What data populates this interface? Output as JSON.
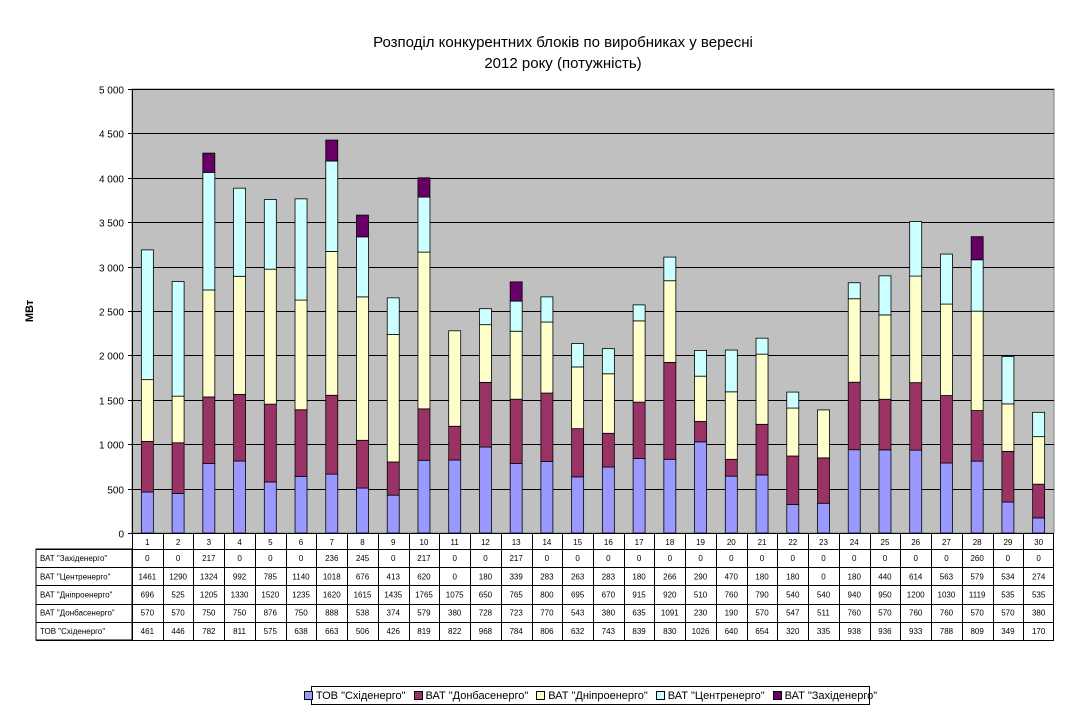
{
  "chart_data": {
    "type": "bar",
    "stacked": true,
    "title_lines": [
      "Розподіл конкурентних блоків по виробниках у вересні",
      "2012 року (потужність)"
    ],
    "ylabel": "МВт",
    "xlabel": "",
    "ylim": [
      0,
      5000
    ],
    "yticks": [
      0,
      500,
      1000,
      1500,
      2000,
      2500,
      3000,
      3500,
      4000,
      4500,
      5000
    ],
    "ytick_labels": [
      "0",
      "500",
      "1 000",
      "1 500",
      "2 000",
      "2 500",
      "3 000",
      "3 500",
      "4 000",
      "4 500",
      "5 000"
    ],
    "grid": true,
    "legend_position": "bottom",
    "categories": [
      "1",
      "2",
      "3",
      "4",
      "5",
      "6",
      "7",
      "8",
      "9",
      "10",
      "11",
      "12",
      "13",
      "14",
      "15",
      "16",
      "17",
      "18",
      "19",
      "20",
      "21",
      "22",
      "23",
      "24",
      "25",
      "26",
      "27",
      "28",
      "29",
      "30"
    ],
    "series": [
      {
        "name": "ТОВ \"Східенерго\"",
        "color": "#9999ff",
        "values": [
          461,
          446,
          782,
          811,
          575,
          638,
          663,
          506,
          426,
          819,
          822,
          968,
          784,
          806,
          632,
          743,
          839,
          830,
          1026,
          640,
          654,
          320,
          335,
          938,
          936,
          933,
          788,
          809,
          349,
          170
        ]
      },
      {
        "name": "ВАТ \"Донбасенерго\"",
        "color": "#993366",
        "values": [
          570,
          570,
          750,
          750,
          876,
          750,
          888,
          538,
          374,
          579,
          380,
          728,
          723,
          770,
          543,
          380,
          635,
          1091,
          230,
          190,
          570,
          547,
          511,
          760,
          570,
          760,
          760,
          570,
          570,
          380
        ]
      },
      {
        "name": "ВАТ \"Дніпроенерго\"",
        "color": "#ffffcc",
        "values": [
          696,
          525,
          1205,
          1330,
          1520,
          1235,
          1620,
          1615,
          1435,
          1765,
          1075,
          650,
          765,
          800,
          695,
          670,
          915,
          920,
          510,
          760,
          790,
          540,
          540,
          940,
          950,
          1200,
          1030,
          1119,
          535,
          535
        ]
      },
      {
        "name": "ВАТ \"Центренерго\"",
        "color": "#ccffff",
        "values": [
          1461,
          1290,
          1324,
          992,
          785,
          1140,
          1018,
          676,
          413,
          620,
          0,
          180,
          339,
          283,
          263,
          283,
          180,
          266,
          290,
          470,
          180,
          180,
          0,
          180,
          440,
          614,
          563,
          579,
          534,
          274
        ]
      },
      {
        "name": "ВАТ \"Західенерго\"",
        "color": "#660066",
        "values": [
          0,
          0,
          217,
          0,
          0,
          0,
          236,
          245,
          0,
          217,
          0,
          0,
          217,
          0,
          0,
          0,
          0,
          0,
          0,
          0,
          0,
          0,
          0,
          0,
          0,
          0,
          0,
          260,
          0,
          0
        ]
      }
    ],
    "table_order": [
      4,
      3,
      2,
      1,
      0
    ]
  }
}
